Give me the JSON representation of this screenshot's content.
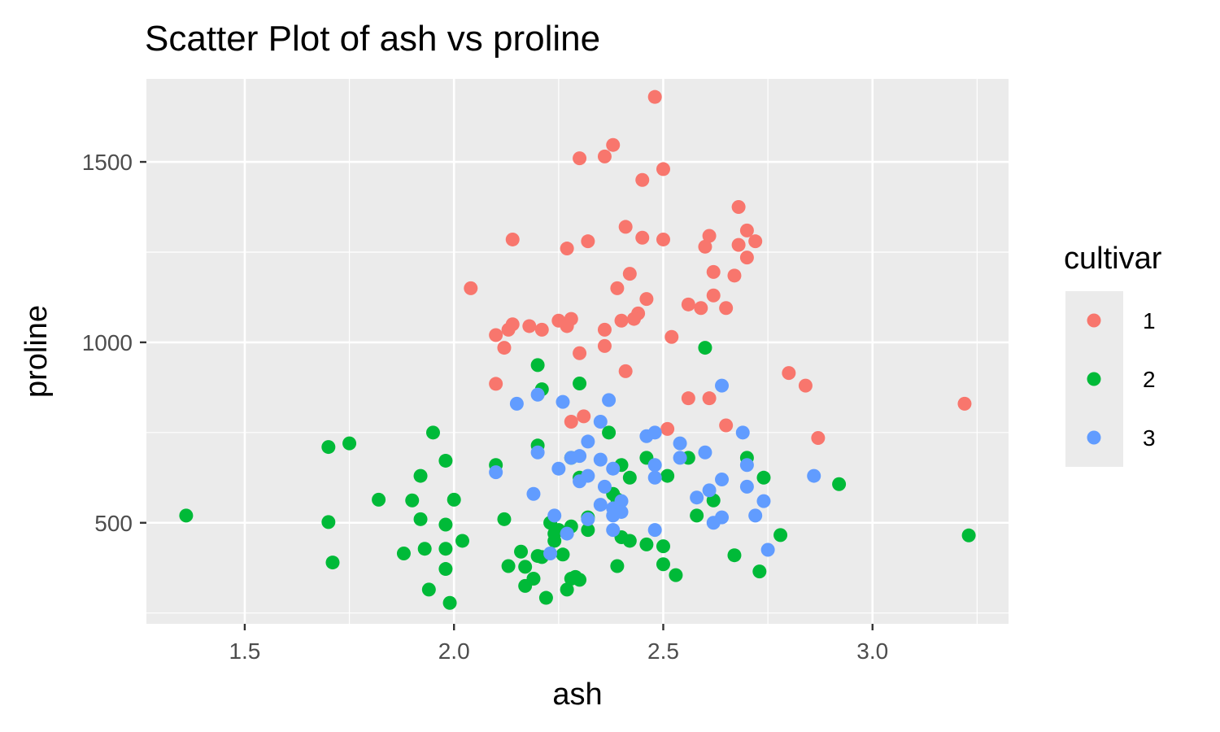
{
  "chart_data": {
    "type": "scatter",
    "title": "Scatter Plot of ash vs proline",
    "xlabel": "ash",
    "ylabel": "proline",
    "xlim": [
      1.265,
      3.325
    ],
    "ylim": [
      220,
      1730
    ],
    "x_ticks": [
      1.5,
      2.0,
      2.5,
      3.0
    ],
    "x_tick_labels": [
      "1.5",
      "2.0",
      "2.5",
      "3.0"
    ],
    "y_ticks": [
      500,
      1000,
      1500
    ],
    "y_tick_labels": [
      "500",
      "1000",
      "1500"
    ],
    "grid": true,
    "background": "#ebebeb",
    "legend": {
      "title": "cultivar",
      "position": "right"
    },
    "series": [
      {
        "name": "1",
        "color": "#f8766d",
        "points": [
          [
            2.48,
            1680
          ],
          [
            2.38,
            1547
          ],
          [
            2.3,
            1510
          ],
          [
            2.36,
            1515
          ],
          [
            2.5,
            1480
          ],
          [
            2.45,
            1450
          ],
          [
            2.68,
            1375
          ],
          [
            2.7,
            1310
          ],
          [
            2.41,
            1320
          ],
          [
            2.45,
            1290
          ],
          [
            2.5,
            1285
          ],
          [
            2.14,
            1285
          ],
          [
            2.32,
            1280
          ],
          [
            2.72,
            1280
          ],
          [
            2.61,
            1295
          ],
          [
            2.6,
            1265
          ],
          [
            2.68,
            1270
          ],
          [
            2.27,
            1260
          ],
          [
            2.7,
            1235
          ],
          [
            2.62,
            1195
          ],
          [
            2.42,
            1190
          ],
          [
            2.67,
            1185
          ],
          [
            2.04,
            1150
          ],
          [
            2.39,
            1150
          ],
          [
            2.62,
            1130
          ],
          [
            2.46,
            1120
          ],
          [
            2.56,
            1105
          ],
          [
            2.59,
            1095
          ],
          [
            2.65,
            1095
          ],
          [
            2.44,
            1080
          ],
          [
            2.43,
            1065
          ],
          [
            2.4,
            1060
          ],
          [
            2.25,
            1060
          ],
          [
            2.28,
            1065
          ],
          [
            2.27,
            1045
          ],
          [
            2.14,
            1050
          ],
          [
            2.18,
            1045
          ],
          [
            2.13,
            1035
          ],
          [
            2.21,
            1035
          ],
          [
            2.36,
            1035
          ],
          [
            2.1,
            1020
          ],
          [
            2.52,
            1015
          ],
          [
            2.12,
            985
          ],
          [
            2.36,
            990
          ],
          [
            2.3,
            970
          ],
          [
            2.41,
            920
          ],
          [
            2.8,
            915
          ],
          [
            2.84,
            880
          ],
          [
            2.1,
            885
          ],
          [
            2.56,
            845
          ],
          [
            2.61,
            845
          ],
          [
            3.22,
            830
          ],
          [
            2.31,
            795
          ],
          [
            2.28,
            780
          ],
          [
            2.65,
            770
          ],
          [
            2.51,
            760
          ],
          [
            2.87,
            735
          ]
        ]
      },
      {
        "name": "2",
        "color": "#00ba38",
        "points": [
          [
            2.6,
            985
          ],
          [
            2.2,
            937
          ],
          [
            2.3,
            886
          ],
          [
            2.21,
            870
          ],
          [
            1.95,
            750
          ],
          [
            2.37,
            750
          ],
          [
            1.75,
            720
          ],
          [
            1.7,
            710
          ],
          [
            2.2,
            714
          ],
          [
            2.28,
            680
          ],
          [
            2.7,
            680
          ],
          [
            2.46,
            680
          ],
          [
            2.56,
            680
          ],
          [
            1.98,
            672
          ],
          [
            2.1,
            660
          ],
          [
            2.4,
            660
          ],
          [
            1.92,
            630
          ],
          [
            2.42,
            625
          ],
          [
            2.3,
            625
          ],
          [
            2.51,
            630
          ],
          [
            2.74,
            625
          ],
          [
            2.92,
            607
          ],
          [
            2.38,
            580
          ],
          [
            2.39,
            565
          ],
          [
            1.82,
            564
          ],
          [
            1.9,
            562
          ],
          [
            2.0,
            564
          ],
          [
            2.62,
            562
          ],
          [
            2.58,
            520
          ],
          [
            1.36,
            520
          ],
          [
            1.92,
            510
          ],
          [
            2.12,
            510
          ],
          [
            2.32,
            515
          ],
          [
            2.23,
            500
          ],
          [
            1.7,
            502
          ],
          [
            1.98,
            495
          ],
          [
            2.28,
            490
          ],
          [
            2.32,
            480
          ],
          [
            2.25,
            480
          ],
          [
            2.24,
            470
          ],
          [
            2.78,
            466
          ],
          [
            3.23,
            465
          ],
          [
            2.4,
            460
          ],
          [
            2.42,
            450
          ],
          [
            2.02,
            450
          ],
          [
            2.24,
            450
          ],
          [
            2.46,
            440
          ],
          [
            2.5,
            435
          ],
          [
            1.93,
            428
          ],
          [
            1.98,
            428
          ],
          [
            2.16,
            420
          ],
          [
            1.88,
            415
          ],
          [
            2.26,
            412
          ],
          [
            2.2,
            408
          ],
          [
            2.21,
            405
          ],
          [
            2.67,
            410
          ],
          [
            1.71,
            390
          ],
          [
            2.13,
            380
          ],
          [
            2.17,
            378
          ],
          [
            2.39,
            380
          ],
          [
            2.5,
            385
          ],
          [
            1.98,
            372
          ],
          [
            2.73,
            365
          ],
          [
            2.53,
            355
          ],
          [
            2.29,
            350
          ],
          [
            2.19,
            345
          ],
          [
            2.28,
            345
          ],
          [
            2.3,
            342
          ],
          [
            2.17,
            325
          ],
          [
            1.94,
            315
          ],
          [
            2.27,
            315
          ],
          [
            2.22,
            292
          ],
          [
            1.99,
            278
          ]
        ]
      },
      {
        "name": "3",
        "color": "#619cff",
        "points": [
          [
            2.64,
            880
          ],
          [
            2.2,
            855
          ],
          [
            2.37,
            840
          ],
          [
            2.26,
            835
          ],
          [
            2.15,
            830
          ],
          [
            2.35,
            780
          ],
          [
            2.46,
            740
          ],
          [
            2.48,
            750
          ],
          [
            2.69,
            750
          ],
          [
            2.32,
            725
          ],
          [
            2.54,
            720
          ],
          [
            2.6,
            695
          ],
          [
            2.2,
            695
          ],
          [
            2.28,
            680
          ],
          [
            2.3,
            685
          ],
          [
            2.35,
            675
          ],
          [
            2.54,
            680
          ],
          [
            2.25,
            650
          ],
          [
            2.38,
            650
          ],
          [
            2.48,
            660
          ],
          [
            2.7,
            660
          ],
          [
            2.1,
            640
          ],
          [
            2.32,
            630
          ],
          [
            2.48,
            625
          ],
          [
            2.3,
            615
          ],
          [
            2.64,
            620
          ],
          [
            2.86,
            630
          ],
          [
            2.36,
            600
          ],
          [
            2.7,
            600
          ],
          [
            2.61,
            590
          ],
          [
            2.19,
            580
          ],
          [
            2.58,
            570
          ],
          [
            2.4,
            560
          ],
          [
            2.74,
            560
          ],
          [
            2.35,
            550
          ],
          [
            2.38,
            540
          ],
          [
            2.4,
            530
          ],
          [
            2.72,
            520
          ],
          [
            2.38,
            520
          ],
          [
            2.24,
            520
          ],
          [
            2.64,
            515
          ],
          [
            2.32,
            510
          ],
          [
            2.62,
            500
          ],
          [
            2.38,
            480
          ],
          [
            2.48,
            480
          ],
          [
            2.27,
            470
          ],
          [
            2.75,
            425
          ],
          [
            2.23,
            415
          ]
        ]
      }
    ]
  }
}
